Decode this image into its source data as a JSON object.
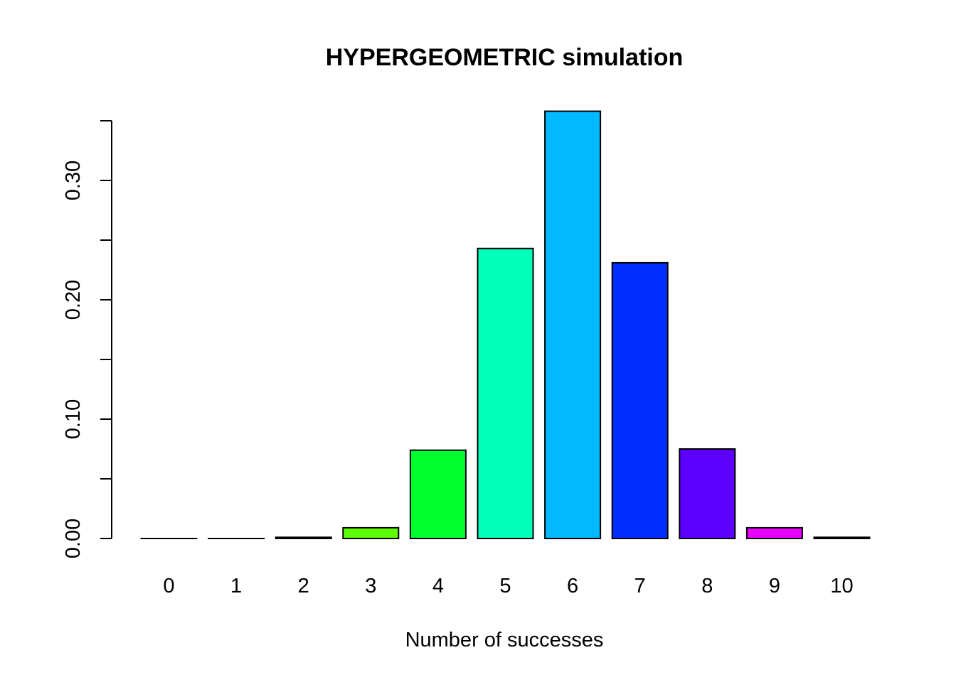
{
  "chart_data": {
    "type": "bar",
    "title": "HYPERGEOMETRIC simulation",
    "xlabel": "Number of successes",
    "ylabel": "",
    "categories": [
      "0",
      "1",
      "2",
      "3",
      "4",
      "5",
      "6",
      "7",
      "8",
      "9",
      "10"
    ],
    "values": [
      0.0,
      0.0,
      0.001,
      0.009,
      0.074,
      0.243,
      0.358,
      0.231,
      0.075,
      0.009,
      0.001
    ],
    "colors": [
      "#FF0000",
      "#FF8B00",
      "#E8FF00",
      "#5DFF00",
      "#00FF2E",
      "#00FFB9",
      "#00B9FF",
      "#002EFF",
      "#5D00FF",
      "#E800FF",
      "#FF008B"
    ],
    "ylim": [
      0,
      0.35
    ],
    "yticks": [
      0.0,
      0.05,
      0.1,
      0.15,
      0.2,
      0.25,
      0.3,
      0.35
    ],
    "ytick_labels": [
      "0.00",
      "",
      "0.10",
      "",
      "0.20",
      "",
      "0.30",
      ""
    ],
    "grid": false,
    "legend": "none"
  }
}
